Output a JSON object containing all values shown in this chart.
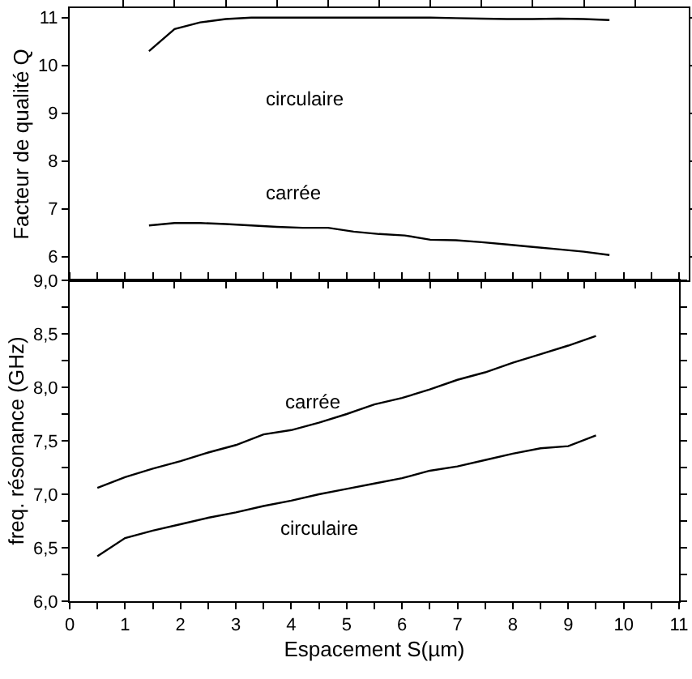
{
  "chart_data": [
    {
      "type": "line",
      "ylabel": "Facteur de qualité Q",
      "categories": [
        null,
        null,
        null,
        null,
        null,
        null,
        null,
        null,
        null,
        null,
        null,
        null,
        null,
        null,
        null,
        null,
        null,
        null,
        null
      ],
      "series": [
        {
          "color": "#000000",
          "values": [
            10.3,
            10.76,
            10.9,
            10.97,
            11.0,
            11.0,
            11.0,
            11.0,
            11.0,
            11.0,
            11.0,
            11.0,
            10.99,
            10.98,
            10.97,
            10.97,
            10.98,
            10.97,
            10.95
          ]
        },
        {
          "color": "#000000",
          "values": [
            6.65,
            6.7,
            6.7,
            6.68,
            6.65,
            6.62,
            6.6,
            6.6,
            6.52,
            6.47,
            6.44,
            6.35,
            6.34,
            6.3,
            6.25,
            6.2,
            6.15,
            6.1,
            6.03
          ]
        }
      ],
      "ylim": [
        5.5,
        11.2
      ],
      "yticks": [
        6,
        7,
        8,
        9,
        10,
        11
      ],
      "tick_labels": "y",
      "grid": false,
      "marker": "none",
      "line_style": "solid",
      "annotations": [
        "circulaire",
        "carrée"
      ]
    },
    {
      "type": "line",
      "xlabel": "Espacement S(µm)",
      "ylabel": "freq. résonance (GHz)",
      "x": [
        0.5,
        1,
        1.5,
        2,
        2.5,
        3,
        3.5,
        4,
        4.5,
        5,
        5.5,
        6,
        6.5,
        7,
        7.5,
        8,
        8.5,
        9,
        9.5
      ],
      "series": [
        {
          "color": "#000000",
          "values": [
            7.06,
            7.16,
            7.24,
            7.31,
            7.39,
            7.46,
            7.56,
            7.6,
            7.67,
            7.75,
            7.84,
            7.9,
            7.98,
            8.07,
            8.14,
            8.23,
            8.31,
            8.39,
            8.48
          ]
        },
        {
          "color": "#000000",
          "values": [
            6.42,
            6.59,
            6.66,
            6.72,
            6.78,
            6.83,
            6.89,
            6.94,
            7.0,
            7.05,
            7.1,
            7.15,
            7.22,
            7.26,
            7.32,
            7.38,
            7.43,
            7.45,
            7.55
          ]
        }
      ],
      "xlim": [
        0,
        11
      ],
      "xticks": [
        0,
        {
          "value": 0.5,
          "label": null
        },
        1,
        {
          "value": 1.5,
          "label": null
        },
        2,
        {
          "value": 2.5,
          "label": null
        },
        3,
        {
          "value": 3.5,
          "label": null
        },
        4,
        {
          "value": 4.5,
          "label": null
        },
        5,
        {
          "value": 5.5,
          "label": null
        },
        6,
        {
          "value": 6.5,
          "label": null
        },
        7,
        {
          "value": 7.5,
          "label": null
        },
        8,
        {
          "value": 8.5,
          "label": null
        },
        9,
        {
          "value": 9.5,
          "label": null
        },
        10,
        {
          "value": 10.5,
          "label": null
        },
        11
      ],
      "ylim": [
        6,
        9
      ],
      "yticks": [
        {
          "value": 6,
          "label": "6,0"
        },
        {
          "value": 6.25,
          "label": null
        },
        {
          "value": 6.5,
          "label": "6,5"
        },
        {
          "value": 6.75,
          "label": null
        },
        {
          "value": 7,
          "label": "7,0"
        },
        {
          "value": 7.25,
          "label": null
        },
        {
          "value": 7.5,
          "label": "7,5"
        },
        {
          "value": 7.75,
          "label": null
        },
        {
          "value": 8,
          "label": "8,0"
        },
        {
          "value": 8.25,
          "label": null
        },
        {
          "value": 8.5,
          "label": "8,5"
        },
        {
          "value": 8.75,
          "label": null
        },
        {
          "value": 9,
          "label": "9,0"
        }
      ],
      "grid": false,
      "marker": "none",
      "line_style": "solid",
      "annotations": [
        "carrée",
        "circulaire"
      ]
    }
  ]
}
